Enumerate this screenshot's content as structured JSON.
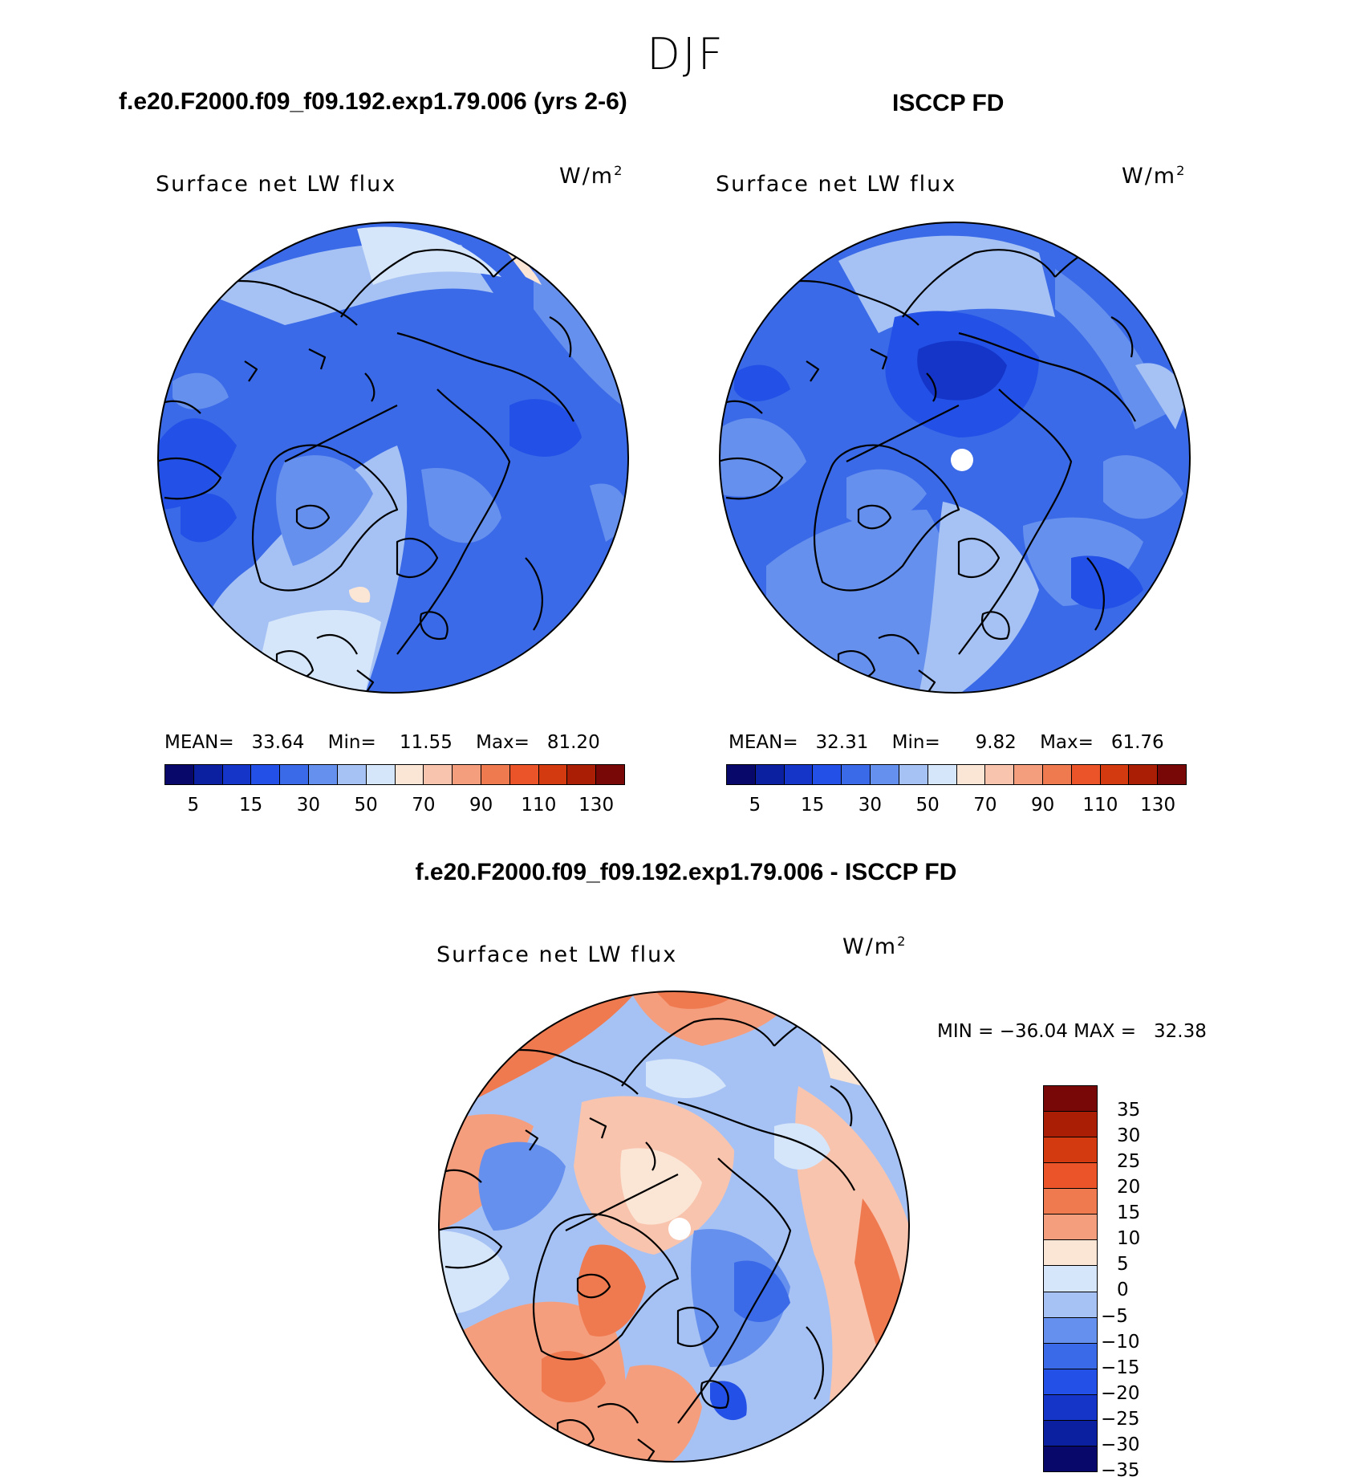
{
  "page": {
    "title": "DJF"
  },
  "panels": [
    {
      "case_title": "f.e20.F2000.f09_f09.192.exp1.79.006 (yrs 2-6)",
      "field": "Surface net LW flux",
      "units_base": "W/m",
      "units_exp": "2",
      "stats": {
        "mean_label": "MEAN=",
        "mean": "33.64",
        "min_label": "Min=",
        "min": "11.55",
        "max_label": "Max=",
        "max": "81.20"
      }
    },
    {
      "case_title": "ISCCP FD",
      "field": "Surface net LW flux",
      "units_base": "W/m",
      "units_exp": "2",
      "stats": {
        "mean_label": "MEAN=",
        "mean": "32.31",
        "min_label": "Min=",
        "min": "9.82",
        "max_label": "Max=",
        "max": "61.76"
      }
    },
    {
      "case_title": "f.e20.F2000.f09_f09.192.exp1.79.006 - ISCCP FD",
      "field": "Surface net LW flux",
      "units_base": "W/m",
      "units_exp": "2",
      "stats_text": "MIN = −36.04 MAX =   32.38"
    }
  ],
  "colorbar_abs": {
    "colors": [
      "#08086b",
      "#0a20a0",
      "#1435c8",
      "#2350e6",
      "#3a6ae8",
      "#6690ee",
      "#a6c2f4",
      "#d6e6fa",
      "#fbe6d6",
      "#f8c4ae",
      "#f59e7e",
      "#f07a50",
      "#ea5428",
      "#d43a10",
      "#ab1e06",
      "#780808"
    ],
    "tick_labels": [
      "5",
      "15",
      "30",
      "50",
      "70",
      "90",
      "110",
      "130"
    ]
  },
  "colorbar_diff": {
    "colors_top_to_bottom": [
      "#780808",
      "#ab1e06",
      "#d43a10",
      "#ea5428",
      "#f07a50",
      "#f59e7e",
      "#fbe6d6",
      "#d6e6fa",
      "#a6c2f4",
      "#6690ee",
      "#3a6ae8",
      "#2350e6",
      "#1435c8",
      "#0a20a0",
      "#08086b"
    ],
    "tick_labels": [
      "35",
      "30",
      "25",
      "20",
      "15",
      "10",
      "5",
      "0",
      "−5",
      "−10",
      "−15",
      "−20",
      "−25",
      "−30",
      "−35"
    ]
  }
}
